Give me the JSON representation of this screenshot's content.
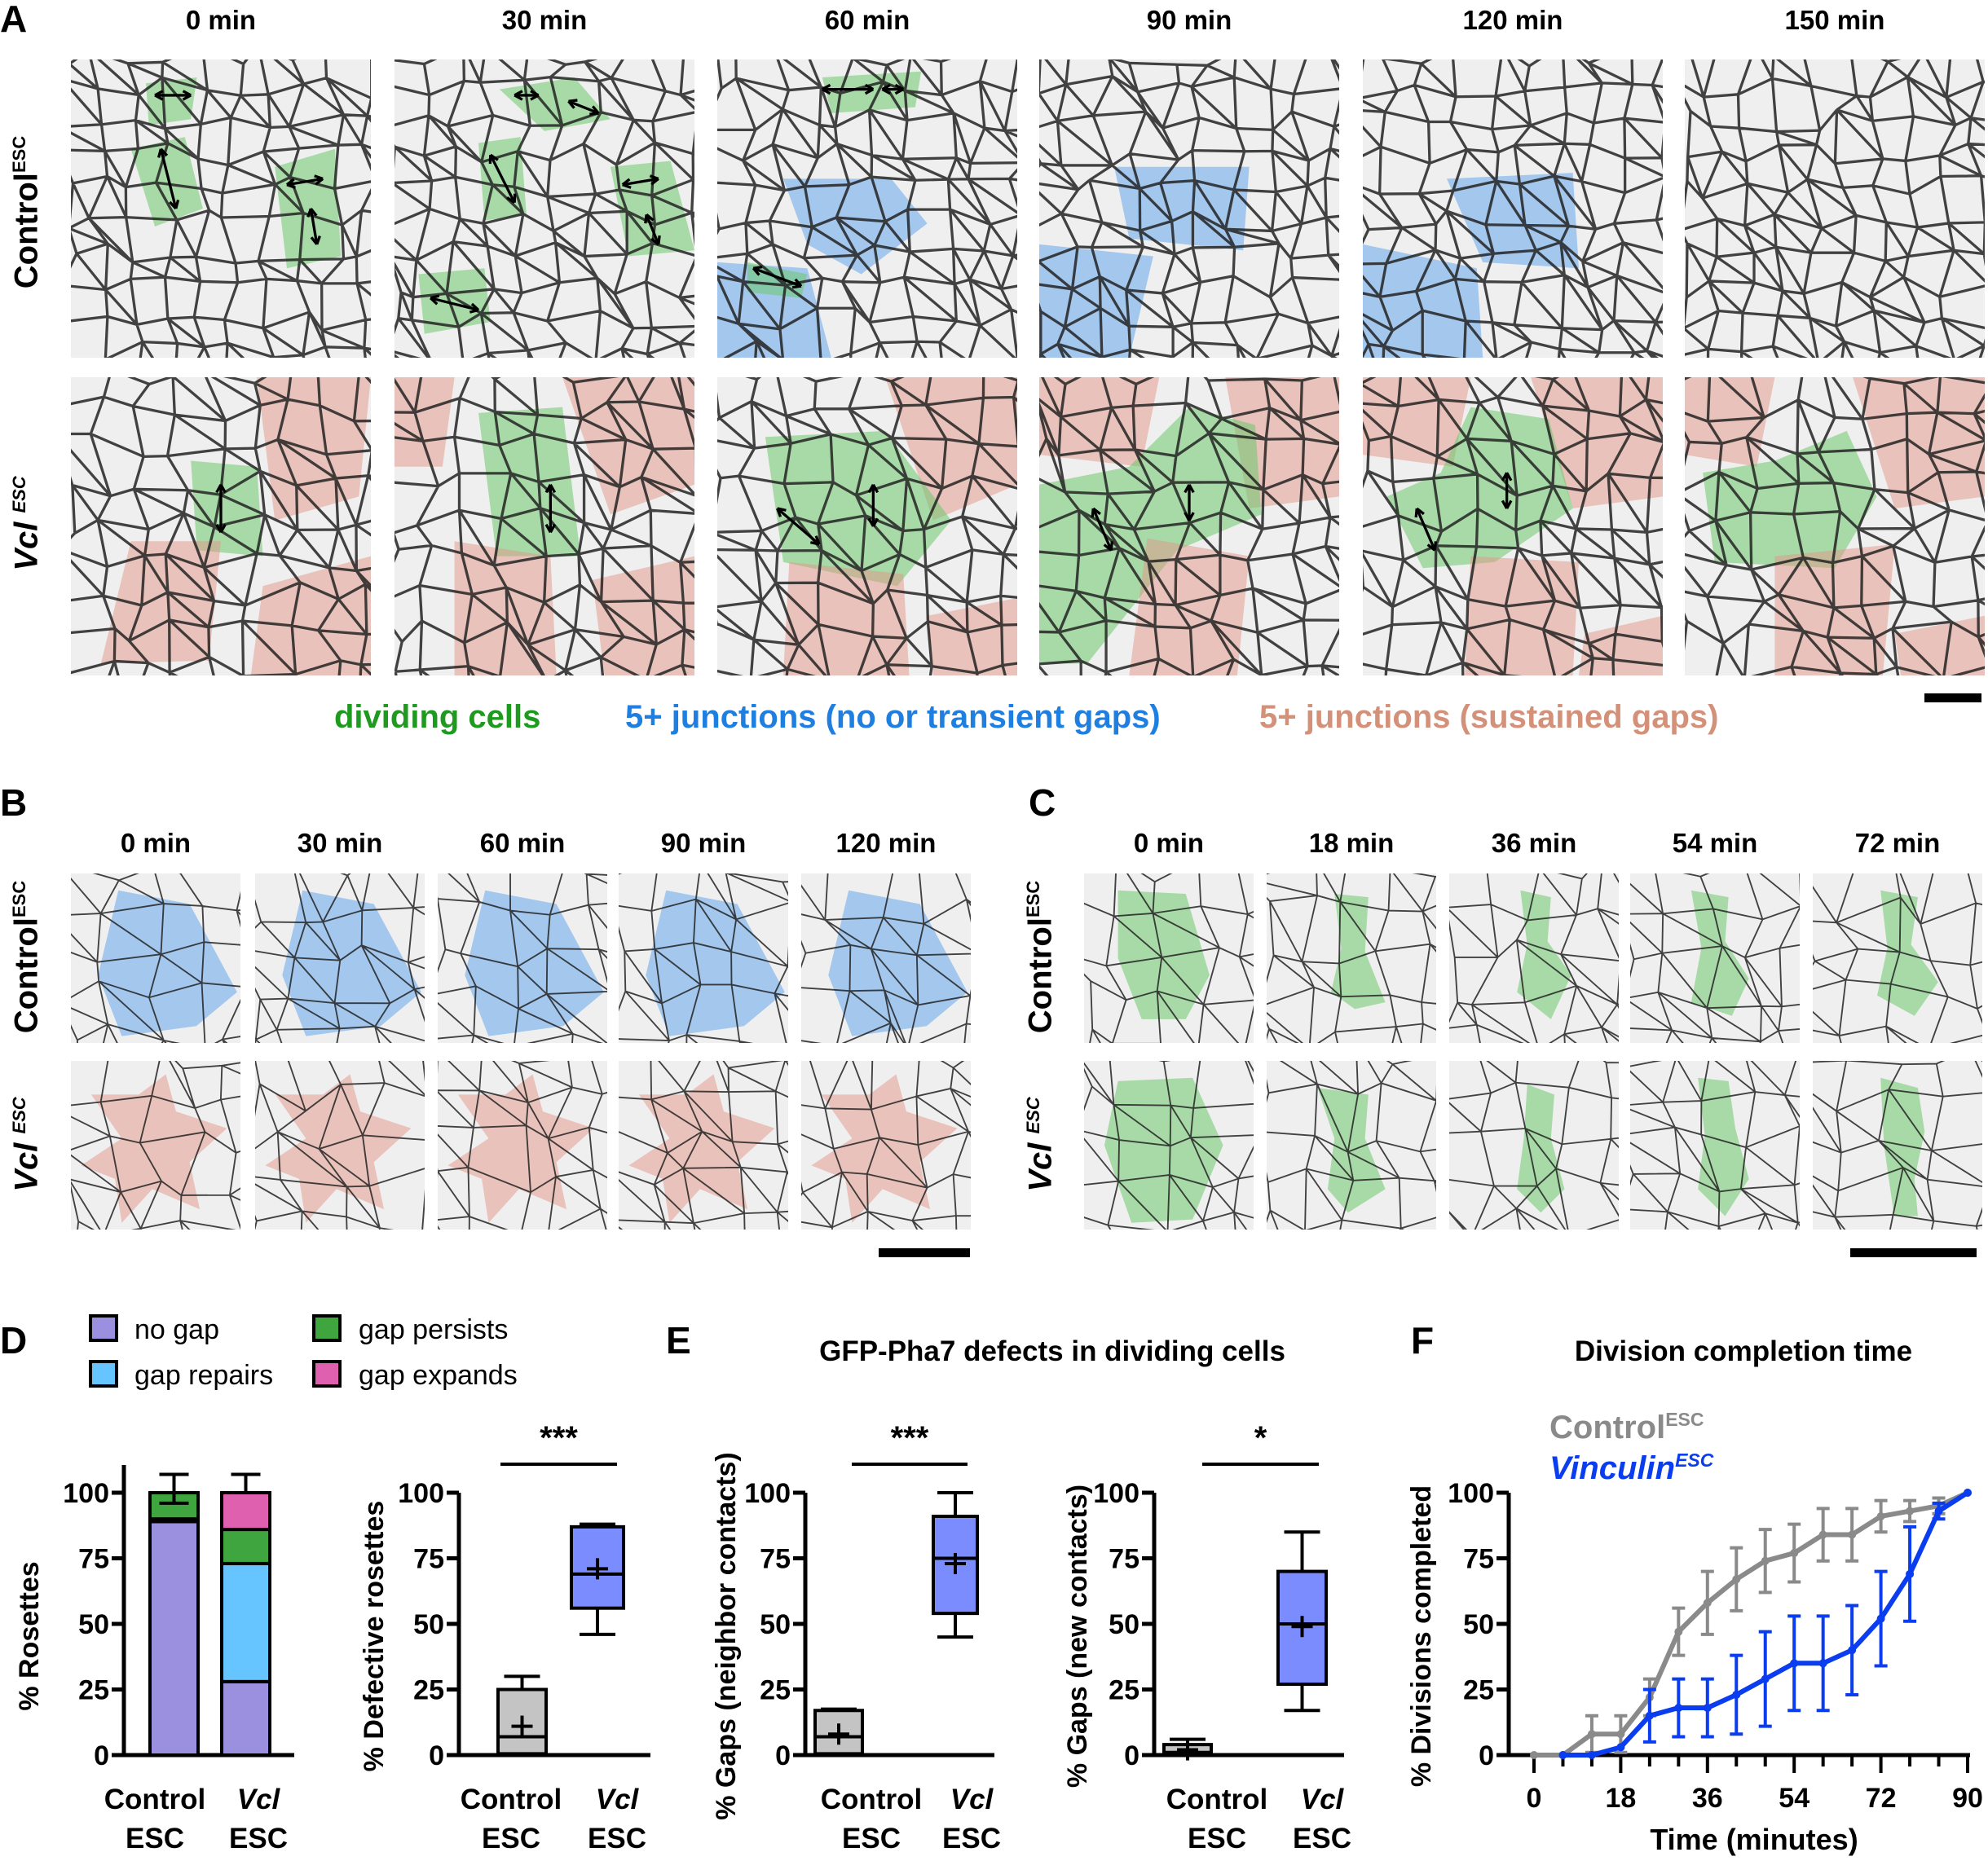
{
  "panels": {
    "A": "A",
    "B": "B",
    "C": "C",
    "D": "D",
    "E": "E",
    "F": "F"
  },
  "panel_a": {
    "times": [
      "0 min",
      "30 min",
      "60 min",
      "90 min",
      "120 min",
      "150 min"
    ],
    "rows": [
      {
        "name": "Control",
        "sup": "ESC"
      },
      {
        "name": "Vcl",
        "sup": "ESC"
      }
    ],
    "legend": {
      "dividing": "dividing cells",
      "transient": "5+ junctions (no or transient gaps)",
      "sustained": "5+ junctions (sustained gaps)"
    }
  },
  "panel_b": {
    "times": [
      "0 min",
      "30 min",
      "60 min",
      "90 min",
      "120 min"
    ]
  },
  "panel_c": {
    "times": [
      "0 min",
      "18 min",
      "36 min",
      "54 min",
      "72 min"
    ]
  },
  "colors": {
    "dividing": "#1e9a1e",
    "transient": "#1f7fe0",
    "sustained": "#d4917a",
    "nogap": "#9b8fdf",
    "repairs": "#66c4ff",
    "persists": "#3fa63f",
    "expands": "#e060b0",
    "box_control": "#c4c4c4",
    "box_vcl": "#7b8cff",
    "line_control": "#8a8a8a",
    "line_vcl": "#0a3cf0"
  },
  "chart_data": [
    {
      "type": "bar",
      "stacked": true,
      "panel": "D",
      "ylabel": "% Rosettes",
      "ylim": [
        0,
        100
      ],
      "yticks": [
        0,
        25,
        50,
        75,
        100
      ],
      "categories": [
        {
          "name": "Control",
          "sub": "ESC"
        },
        {
          "name": "Vcl",
          "sub": "ESC"
        }
      ],
      "legend": [
        "no gap",
        "gap repairs",
        "gap persists",
        "gap expands"
      ],
      "series": [
        {
          "name": "no gap",
          "values": [
            89,
            28
          ],
          "err_top": [
            89,
            36
          ]
        },
        {
          "name": "gap repairs",
          "values": [
            1,
            45
          ],
          "err_top": [
            null,
            null
          ]
        },
        {
          "name": "gap persists",
          "values": [
            10,
            13
          ],
          "err_top": [
            96,
            91
          ]
        },
        {
          "name": "gap expands",
          "values": [
            0,
            14
          ],
          "err_top": [
            null,
            107
          ]
        }
      ],
      "total_err_top": [
        107,
        107
      ]
    },
    {
      "type": "box",
      "panel": "D",
      "ylabel": "% Defective rosettes",
      "ylim": [
        0,
        100
      ],
      "yticks": [
        0,
        25,
        50,
        75,
        100
      ],
      "significance": "***",
      "categories": [
        {
          "name": "Control",
          "sub": "ESC"
        },
        {
          "name": "Vcl",
          "sub": "ESC"
        }
      ],
      "boxes": [
        {
          "min": 0,
          "q1": 0.5,
          "median": 7,
          "q3": 25,
          "max": 30,
          "mean": 11
        },
        {
          "min": 46,
          "q1": 56,
          "median": 69,
          "q3": 87,
          "max": 88,
          "mean": 71
        }
      ]
    },
    {
      "type": "box",
      "panel": "E",
      "title": "GFP-Pha7 defects in dividing cells",
      "ylabel": "% Gaps (neighbor contacts)",
      "ylim": [
        0,
        100
      ],
      "yticks": [
        0,
        25,
        50,
        75,
        100
      ],
      "significance": "***",
      "categories": [
        {
          "name": "Control",
          "sub": "ESC"
        },
        {
          "name": "Vcl",
          "sub": "ESC"
        }
      ],
      "boxes": [
        {
          "min": 0,
          "q1": 0.5,
          "median": 7,
          "q3": 17,
          "max": 17.5,
          "mean": 8
        },
        {
          "min": 45,
          "q1": 54,
          "median": 75,
          "q3": 91,
          "max": 100,
          "mean": 73
        }
      ]
    },
    {
      "type": "box",
      "panel": "E",
      "ylabel": "% Gaps (new contacts)",
      "ylim": [
        0,
        100
      ],
      "yticks": [
        0,
        25,
        50,
        75,
        100
      ],
      "significance": "*",
      "categories": [
        {
          "name": "Control",
          "sub": "ESC"
        },
        {
          "name": "Vcl",
          "sub": "ESC"
        }
      ],
      "boxes": [
        {
          "min": 0,
          "q1": 0.5,
          "median": 1,
          "q3": 4,
          "max": 6,
          "mean": 2
        },
        {
          "min": 17,
          "q1": 27,
          "median": 50,
          "q3": 70,
          "max": 85,
          "mean": 49
        }
      ]
    },
    {
      "type": "line",
      "panel": "F",
      "title": "Division completion time",
      "xlabel": "Time (minutes)",
      "ylabel": "% Divisions completed",
      "xlim": [
        0,
        90
      ],
      "ylim": [
        0,
        100
      ],
      "xticks": [
        0,
        18,
        36,
        54,
        72,
        90
      ],
      "yticks": [
        0,
        25,
        50,
        75,
        100
      ],
      "x": [
        0,
        6,
        12,
        18,
        24,
        30,
        36,
        42,
        48,
        54,
        60,
        66,
        72,
        78,
        84,
        90
      ],
      "series": [
        {
          "name": "Control",
          "sup": "ESC",
          "values": [
            0,
            0,
            8,
            8,
            22,
            47,
            58,
            67,
            74,
            77,
            84,
            84,
            91,
            93,
            95,
            100
          ],
          "err": [
            0,
            0,
            7,
            7,
            7,
            9,
            12,
            12,
            12,
            11,
            10,
            10,
            6,
            4,
            3,
            0
          ]
        },
        {
          "name": "Vinculin",
          "sup": "ESC",
          "values": [
            null,
            0,
            0,
            3,
            15,
            18,
            18,
            23,
            29,
            35,
            35,
            40,
            52,
            69,
            93,
            100
          ],
          "err": [
            0,
            0,
            0,
            0,
            10,
            11,
            11,
            15,
            18,
            18,
            18,
            17,
            18,
            18,
            3,
            0
          ]
        }
      ]
    }
  ]
}
